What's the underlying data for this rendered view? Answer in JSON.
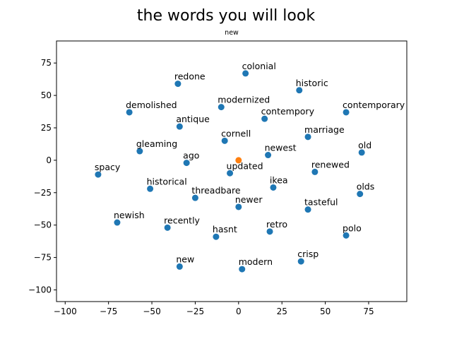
{
  "chart_data": {
    "type": "scatter",
    "title": "the words you will look",
    "subtitle": "new",
    "xlabel": "",
    "ylabel": "",
    "xlim": [
      -105,
      97
    ],
    "ylim": [
      -109,
      92
    ],
    "xticks": [
      -100,
      -75,
      -50,
      -25,
      0,
      25,
      50,
      75
    ],
    "yticks": [
      -100,
      -75,
      -50,
      -25,
      0,
      25,
      50,
      75
    ],
    "grid": false,
    "series_colors": {
      "words": "#1f77b4",
      "query": "#ff7f0e"
    },
    "query_point": {
      "label": "new",
      "x": 0,
      "y": 0
    },
    "points": [
      {
        "label": "colonial",
        "x": 4,
        "y": 67
      },
      {
        "label": "redone",
        "x": -35,
        "y": 59
      },
      {
        "label": "historic",
        "x": 35,
        "y": 54
      },
      {
        "label": "modernized",
        "x": -10,
        "y": 41
      },
      {
        "label": "demolished",
        "x": -63,
        "y": 37
      },
      {
        "label": "contemporary",
        "x": 62,
        "y": 37
      },
      {
        "label": "contempory",
        "x": 15,
        "y": 32
      },
      {
        "label": "antique",
        "x": -34,
        "y": 26
      },
      {
        "label": "marriage",
        "x": 40,
        "y": 18
      },
      {
        "label": "cornell",
        "x": -8,
        "y": 15
      },
      {
        "label": "gleaming",
        "x": -57,
        "y": 7
      },
      {
        "label": "old",
        "x": 71,
        "y": 6
      },
      {
        "label": "newest",
        "x": 17,
        "y": 4
      },
      {
        "label": "ago",
        "x": -30,
        "y": -2
      },
      {
        "label": "updated",
        "x": -5,
        "y": -10
      },
      {
        "label": "renewed",
        "x": 44,
        "y": -9
      },
      {
        "label": "spacy",
        "x": -81,
        "y": -11
      },
      {
        "label": "ikea",
        "x": 20,
        "y": -21
      },
      {
        "label": "historical",
        "x": -51,
        "y": -22
      },
      {
        "label": "olds",
        "x": 70,
        "y": -26
      },
      {
        "label": "threadbare",
        "x": -25,
        "y": -29
      },
      {
        "label": "newer",
        "x": 0,
        "y": -36
      },
      {
        "label": "tasteful",
        "x": 40,
        "y": -38
      },
      {
        "label": "newish",
        "x": -70,
        "y": -48
      },
      {
        "label": "recently",
        "x": -41,
        "y": -52
      },
      {
        "label": "retro",
        "x": 18,
        "y": -55
      },
      {
        "label": "hasnt",
        "x": -13,
        "y": -59
      },
      {
        "label": "polo",
        "x": 62,
        "y": -58
      },
      {
        "label": "crisp",
        "x": 36,
        "y": -78
      },
      {
        "label": "new",
        "x": -34,
        "y": -82
      },
      {
        "label": "modern",
        "x": 2,
        "y": -84
      }
    ]
  }
}
